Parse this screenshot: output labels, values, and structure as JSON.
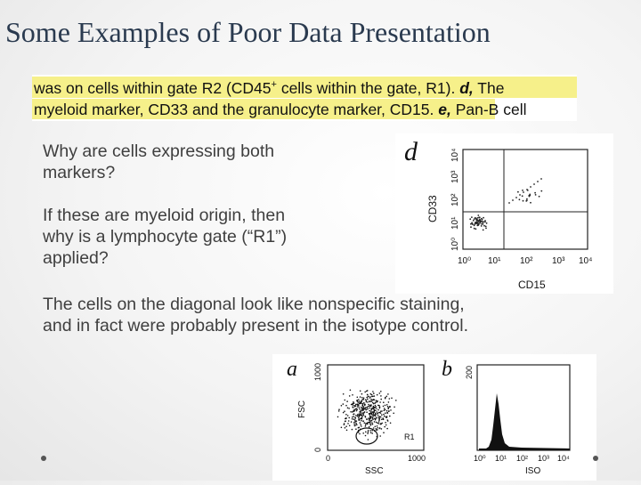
{
  "title": "Some Examples of Poor Data Presentation",
  "caption": {
    "line1_a": "was on cells within gate R2 (CD45",
    "line1_sup": "+",
    "line1_b": " cells within the gate, R1). ",
    "line1_d": "d,",
    "line1_c": " The",
    "line2_a": "myeloid marker, CD33 and the granulocyte marker, CD15. ",
    "line2_e": "e,",
    "line2_b": " Pan-B cell",
    "highlight_color": "#f6f08a"
  },
  "bullets": [
    {
      "text": "Why are cells expressing both markers?",
      "lines": [
        "Why are cells expressing both",
        "markers?"
      ]
    },
    {
      "text": "If these are myeloid origin, then why is a lymphocyte gate (“R1”) applied?",
      "lines": [
        "If these are myeloid origin, then",
        "why is a lymphocyte gate (“R1”)",
        "applied?"
      ]
    },
    {
      "text": "The cells on the diagonal look like nonspecific staining, and in fact were probably present in the isotype control.",
      "lines": [
        "The cells on the diagonal look like nonspecific staining,",
        "and in fact were probably present in the isotype control."
      ]
    }
  ],
  "panel_d": {
    "label": "d",
    "y_axis_label": "CD33",
    "x_axis_label": "CD15",
    "y_ticks": [
      "10⁰",
      "10¹",
      "10²",
      "10³",
      "10⁴"
    ],
    "x_ticks": [
      "10⁰",
      "10¹",
      "10²",
      "10³",
      "10⁴"
    ]
  },
  "panel_a": {
    "label": "a",
    "y_axis_label": "FSC",
    "x_axis_label": "SSC",
    "y_ticks": [
      "0",
      "1000"
    ],
    "x_ticks": [
      "0",
      "1000"
    ],
    "gate_label": "R1"
  },
  "panel_b": {
    "label": "b",
    "y_axis_label": "",
    "x_axis_label": "ISO",
    "y_ticks": [
      "200"
    ],
    "x_ticks": [
      "10⁰",
      "10¹",
      "10²",
      "10³",
      "10⁴"
    ]
  },
  "colors": {
    "title": "#2a3a4f",
    "body_text": "#3f3f3f"
  }
}
